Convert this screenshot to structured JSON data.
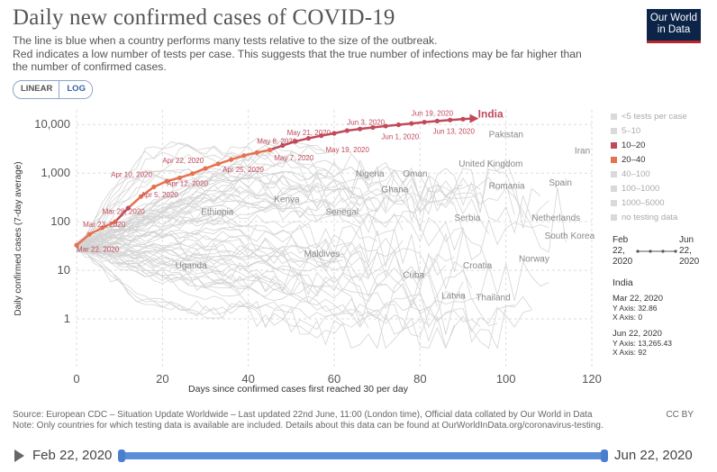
{
  "header": {
    "title": "Daily new confirmed cases of COVID-19",
    "subtitle_lines": [
      "The line is blue when a country performs many tests relative to the size of the outbreak.",
      "Red indicates a low number of tests per case. This suggests that the true number of infections may be far higher than",
      "the number of confirmed cases."
    ],
    "logo_line1": "Our World",
    "logo_line2": "in Data"
  },
  "controls": {
    "linear_label": "LINEAR",
    "log_label": "LOG",
    "active": "log"
  },
  "legend": {
    "items": [
      {
        "label": "<5 tests per case",
        "color": "#d9d9d9",
        "text_color": "#aaaaaa"
      },
      {
        "label": "5–10",
        "color": "#d9d9d9",
        "text_color": "#aaaaaa"
      },
      {
        "label": "10–20",
        "color": "#c0495a",
        "text_color": "#333333"
      },
      {
        "label": "20–40",
        "color": "#e6714f",
        "text_color": "#333333"
      },
      {
        "label": "40–100",
        "color": "#d9d9d9",
        "text_color": "#aaaaaa"
      },
      {
        "label": "100–1000",
        "color": "#d9d9d9",
        "text_color": "#aaaaaa"
      },
      {
        "label": "1000–5000",
        "color": "#d9d9d9",
        "text_color": "#aaaaaa"
      },
      {
        "label": "no testing data",
        "color": "#d9d9d9",
        "text_color": "#aaaaaa"
      }
    ]
  },
  "time_range": {
    "start_line1": "Feb",
    "start_line2": "22,",
    "start_line3": "2020",
    "end_line1": "Jun",
    "end_line2": "22,",
    "end_line3": "2020"
  },
  "info": {
    "country": "India",
    "start_date": "Mar 22, 2020",
    "start_y": "Y Axis: 32.86",
    "start_x": "X Axis: 0",
    "end_date": "Jun 22, 2020",
    "end_y": "Y Axis: 13,265.43",
    "end_x": "X Axis: 92"
  },
  "footer": {
    "source": "Source: European CDC – Situation Update Worldwide – Last updated 22nd June, 11:00 (London time), Official data collated by Our World in Data",
    "note": "Note: Only countries for which testing data is available are included. Details about this data can be found at OurWorldInData.org/coronavirus-testing.",
    "license": "CC BY"
  },
  "timeline": {
    "start": "Feb 22, 2020",
    "end": "Jun 22, 2020"
  },
  "colors": {
    "band_10_20": "#c0495a",
    "band_20_40": "#e6714f",
    "background_lines": "#d4d4d4"
  },
  "chart_data": {
    "type": "line",
    "title": "Daily new confirmed cases of COVID-19",
    "xlabel": "Days since confirmed cases first reached 30 per day",
    "ylabel": "Daily confirmed cases (7-day average)",
    "x_scale": "linear",
    "y_scale": "log",
    "xlim": [
      0,
      120
    ],
    "ylim": [
      0.1,
      20000
    ],
    "x_ticks": [
      0,
      20,
      40,
      60,
      80,
      100,
      120
    ],
    "x_tick_labels": [
      "0",
      "20",
      "40",
      "60",
      "80",
      "100",
      "120"
    ],
    "y_ticks": [
      1,
      10,
      100,
      1000,
      10000
    ],
    "y_tick_labels": [
      "1",
      "10",
      "100",
      "1,000",
      "10,000"
    ],
    "grid": true,
    "series": [
      {
        "name": "India",
        "highlighted": true,
        "x": [
          0,
          3,
          6,
          9,
          12,
          15,
          18,
          21,
          24,
          27,
          30,
          33,
          36,
          39,
          42,
          45,
          48,
          51,
          54,
          57,
          60,
          63,
          66,
          69,
          72,
          75,
          78,
          81,
          84,
          87,
          90,
          92
        ],
        "y": [
          32.86,
          55,
          75,
          100,
          190,
          330,
          520,
          680,
          800,
          980,
          1250,
          1550,
          1900,
          2300,
          2650,
          3000,
          3700,
          4500,
          5200,
          5900,
          6600,
          7500,
          8100,
          8700,
          9300,
          9900,
          10500,
          11200,
          11800,
          12400,
          12900,
          13265.43
        ],
        "band": [
          "20-40",
          "20-40",
          "20-40",
          "20-40",
          "10-20",
          "20-40",
          "20-40",
          "20-40",
          "20-40",
          "20-40",
          "20-40",
          "20-40",
          "20-40",
          "20-40",
          "20-40",
          "20-40",
          "10-20",
          "10-20",
          "10-20",
          "10-20",
          "10-20",
          "10-20",
          "10-20",
          "10-20",
          "10-20",
          "10-20",
          "10-20",
          "10-20",
          "10-20",
          "10-20",
          "10-20",
          "10-20"
        ]
      }
    ],
    "point_annotations": [
      {
        "text": "Mar 22, 2020",
        "x": 0,
        "y": 24
      },
      {
        "text": "Mar 23, 2020",
        "x": 1.5,
        "y": 78
      },
      {
        "text": "Mar 28, 2020",
        "x": 6,
        "y": 145
      },
      {
        "text": "Apr 5, 2020",
        "x": 15,
        "y": 320
      },
      {
        "text": "Apr 10, 2020",
        "x": 8,
        "y": 840
      },
      {
        "text": "Apr 12, 2020",
        "x": 21,
        "y": 540
      },
      {
        "text": "Apr 22, 2020",
        "x": 20,
        "y": 1600
      },
      {
        "text": "Apr 25, 2020",
        "x": 34,
        "y": 1050
      },
      {
        "text": "May 7, 2020",
        "x": 46,
        "y": 1850
      },
      {
        "text": "May 8, 2020",
        "x": 42,
        "y": 4000
      },
      {
        "text": "May 19, 2020",
        "x": 58,
        "y": 2700
      },
      {
        "text": "May 21, 2020",
        "x": 49,
        "y": 6000
      },
      {
        "text": "Jun 1, 2020",
        "x": 71,
        "y": 5000
      },
      {
        "text": "Jun 3, 2020",
        "x": 63,
        "y": 9800
      },
      {
        "text": "Jun 13, 2020",
        "x": 83,
        "y": 6500
      },
      {
        "text": "Jun 19, 2020",
        "x": 78,
        "y": 15200
      }
    ],
    "country_labels": [
      {
        "text": "India",
        "x": 93.5,
        "y": 14000,
        "highlight": true
      },
      {
        "text": "Pakistan",
        "x": 96,
        "y": 5400
      },
      {
        "text": "Iran",
        "x": 116,
        "y": 2500
      },
      {
        "text": "United Kingdom",
        "x": 89,
        "y": 1350
      },
      {
        "text": "Nigeria",
        "x": 65,
        "y": 850
      },
      {
        "text": "Oman",
        "x": 76,
        "y": 850
      },
      {
        "text": "Spain",
        "x": 110,
        "y": 560
      },
      {
        "text": "Romania",
        "x": 96,
        "y": 480
      },
      {
        "text": "Ghana",
        "x": 71,
        "y": 400
      },
      {
        "text": "Kenya",
        "x": 46,
        "y": 250
      },
      {
        "text": "Ethiopia",
        "x": 29,
        "y": 140
      },
      {
        "text": "Senegal",
        "x": 58,
        "y": 140
      },
      {
        "text": "Netherlands",
        "x": 106,
        "y": 105
      },
      {
        "text": "Serbia",
        "x": 88,
        "y": 105
      },
      {
        "text": "South Korea",
        "x": 109,
        "y": 45
      },
      {
        "text": "Maldives",
        "x": 53,
        "y": 19
      },
      {
        "text": "Norway",
        "x": 103,
        "y": 15
      },
      {
        "text": "Uganda",
        "x": 23,
        "y": 11
      },
      {
        "text": "Croatia",
        "x": 90,
        "y": 11
      },
      {
        "text": "Cuba",
        "x": 76,
        "y": 7
      },
      {
        "text": "Latvia",
        "x": 85,
        "y": 2.6
      },
      {
        "text": "Thailand",
        "x": 93,
        "y": 2.4
      }
    ]
  }
}
